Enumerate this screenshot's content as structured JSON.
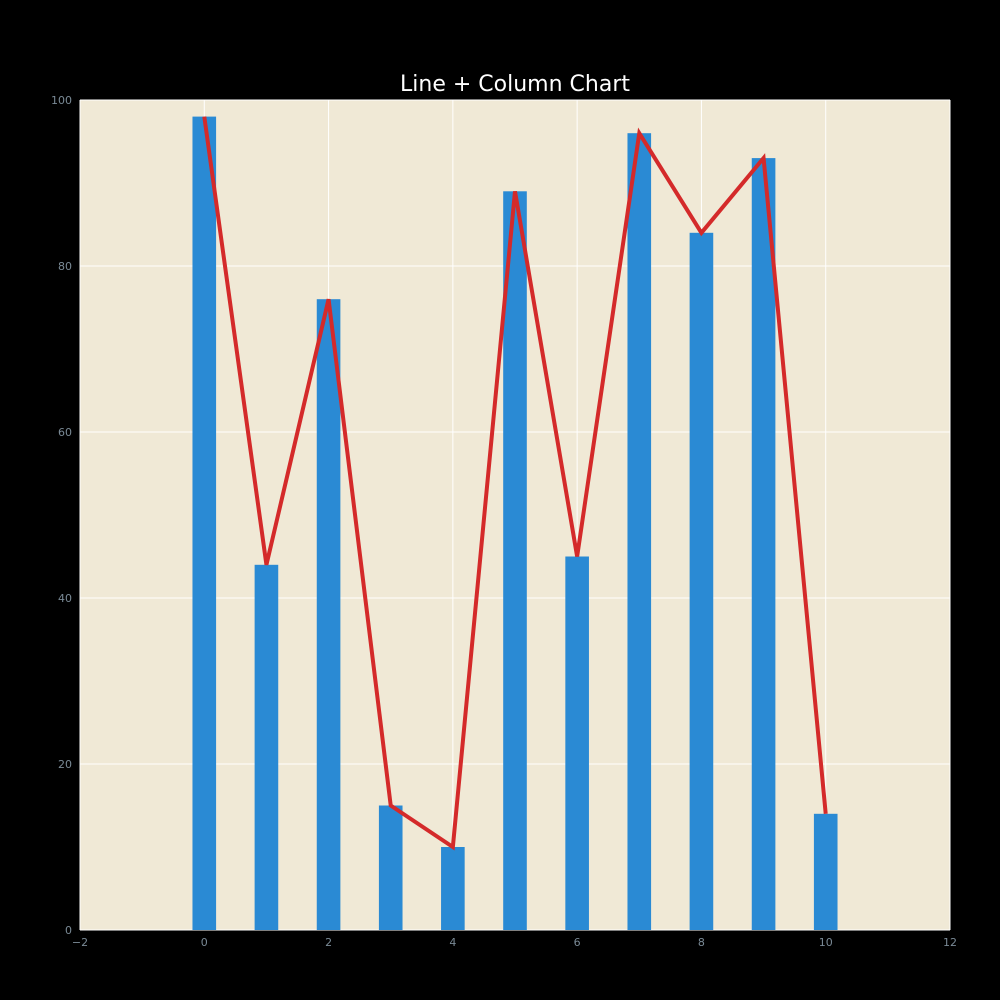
{
  "chart_data": {
    "type": "bar+line",
    "title": "Line + Column Chart",
    "xlabel": "",
    "ylabel": "",
    "x": [
      0,
      1,
      2,
      3,
      4,
      5,
      6,
      7,
      8,
      9,
      10
    ],
    "series": [
      {
        "type": "bar",
        "values": [
          98,
          44,
          76,
          15,
          10,
          89,
          45,
          96,
          84,
          93,
          14
        ]
      },
      {
        "type": "line",
        "values": [
          98,
          44,
          76,
          15,
          10,
          89,
          45,
          96,
          84,
          93,
          14
        ]
      }
    ],
    "xlim": [
      -2,
      12
    ],
    "ylim": [
      0,
      100
    ],
    "xticks": [
      "−2",
      "0",
      "2",
      "4",
      "6",
      "8",
      "10",
      "12"
    ],
    "xtick_values": [
      -2,
      0,
      2,
      4,
      6,
      8,
      10,
      12
    ],
    "yticks": [
      "0",
      "20",
      "40",
      "60",
      "80",
      "100"
    ],
    "ytick_values": [
      0,
      20,
      40,
      60,
      80,
      100
    ],
    "grid": true,
    "colors": {
      "background": "#000000",
      "plot_background": "#f0e9d6",
      "grid": "#ffffff",
      "bar": "#2a8ad4",
      "line": "#d42a2a",
      "title": "#ffffff",
      "tick_label": "#7a8a96"
    }
  }
}
